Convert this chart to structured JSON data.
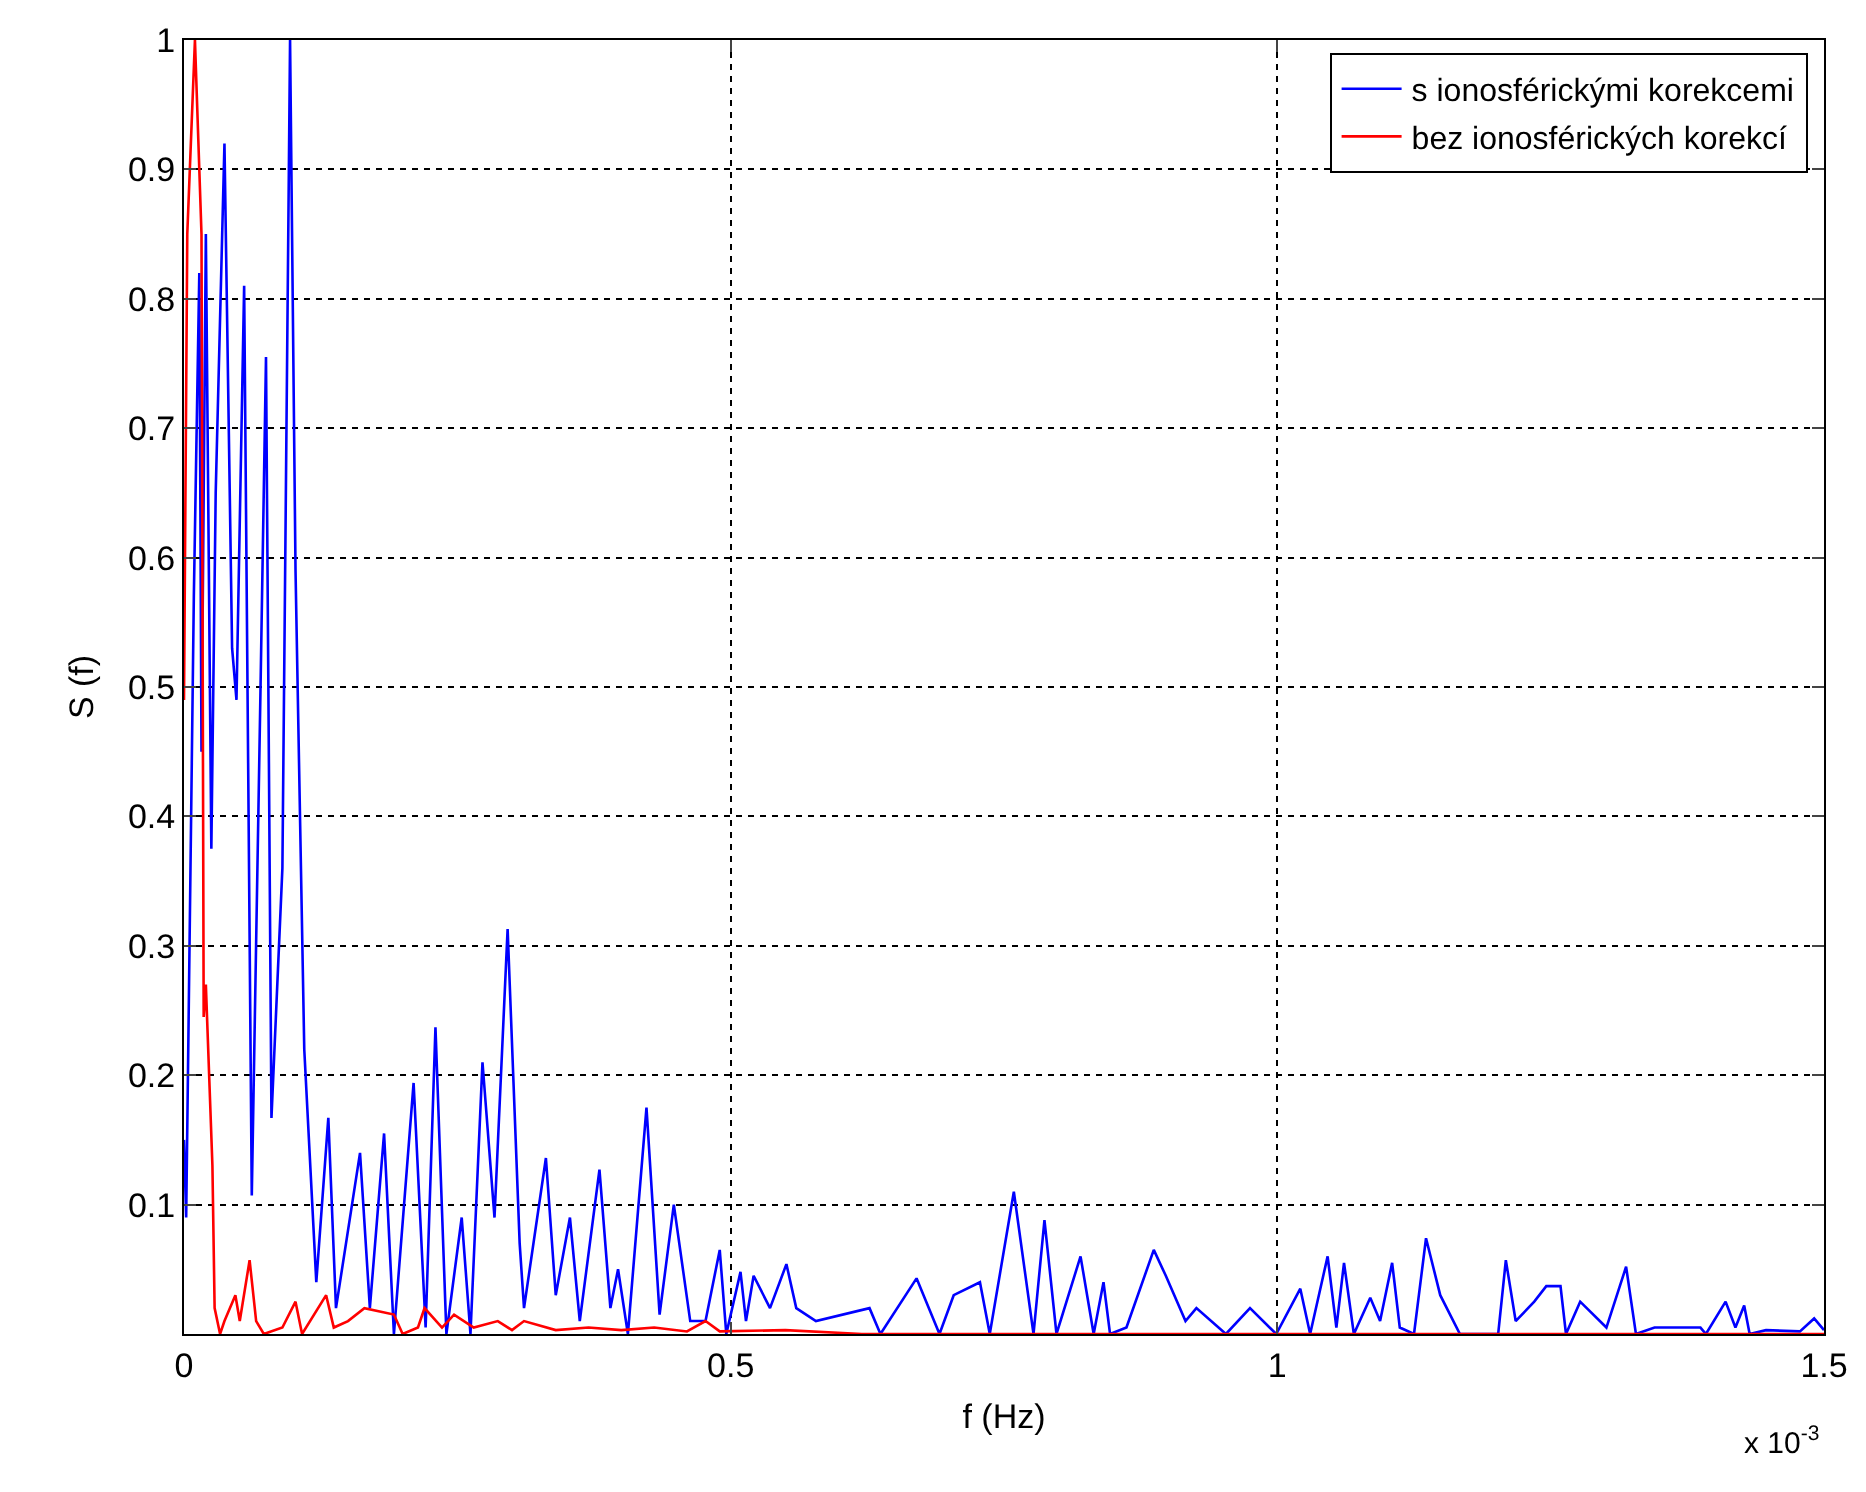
{
  "chart_data": {
    "type": "line",
    "xlabel": "f (Hz)",
    "ylabel": "S (f)",
    "xlim": [
      0,
      1.5
    ],
    "xticks": [
      0,
      0.5,
      1,
      1.5
    ],
    "ylim": [
      0,
      1
    ],
    "yticks": [
      0.1,
      0.2,
      0.3,
      0.4,
      0.5,
      0.6,
      0.7,
      0.8,
      0.9,
      1
    ],
    "grid": true,
    "legend": "top right",
    "marker": "none",
    "line_style": "solid",
    "annotations": [
      "x 10$^{-3}$"
    ],
    "series": [
      {
        "name": "s ionosférickými korekcemi",
        "color": "#0000ff",
        "x": [
          0,
          0.002,
          0.009,
          0.014,
          0.016,
          0.02,
          0.025,
          0.029,
          0.037,
          0.044,
          0.048,
          0.055,
          0.062,
          0.07,
          0.075,
          0.08,
          0.09,
          0.097,
          0.102,
          0.11,
          0.121,
          0.132,
          0.139,
          0.161,
          0.17,
          0.183,
          0.192,
          0.21,
          0.221,
          0.23,
          0.24,
          0.254,
          0.262,
          0.273,
          0.284,
          0.296,
          0.307,
          0.311,
          0.331,
          0.34,
          0.353,
          0.362,
          0.38,
          0.39,
          0.397,
          0.406,
          0.423,
          0.435,
          0.448,
          0.463,
          0.477,
          0.49,
          0.496,
          0.509,
          0.514,
          0.521,
          0.536,
          0.551,
          0.56,
          0.578,
          0.627,
          0.637,
          0.67,
          0.691,
          0.704,
          0.728,
          0.737,
          0.759,
          0.777,
          0.787,
          0.798,
          0.82,
          0.832,
          0.841,
          0.847,
          0.862,
          0.887,
          0.898,
          0.916,
          0.926,
          0.953,
          0.975,
          0.999,
          1.021,
          1.03,
          1.046,
          1.054,
          1.061,
          1.07,
          1.085,
          1.094,
          1.105,
          1.112,
          1.125,
          1.136,
          1.149,
          1.167,
          1.202,
          1.209,
          1.218,
          1.235,
          1.246,
          1.259,
          1.264,
          1.277,
          1.301,
          1.319,
          1.328,
          1.345,
          1.387,
          1.392,
          1.41,
          1.419,
          1.427,
          1.432,
          1.447,
          1.478,
          1.491,
          1.5
        ],
        "values": [
          0.15,
          0.09,
          0.57,
          0.82,
          0.45,
          0.85,
          0.375,
          0.65,
          0.92,
          0.53,
          0.49,
          0.81,
          0.107,
          0.5,
          0.755,
          0.167,
          0.36,
          1.0,
          0.59,
          0.22,
          0.04,
          0.167,
          0.02,
          0.14,
          0.02,
          0.155,
          0.0,
          0.194,
          0.005,
          0.237,
          0.0,
          0.09,
          0.0,
          0.21,
          0.09,
          0.313,
          0.07,
          0.02,
          0.136,
          0.03,
          0.09,
          0.01,
          0.127,
          0.02,
          0.05,
          0.0,
          0.175,
          0.015,
          0.1,
          0.01,
          0.01,
          0.065,
          0.0,
          0.048,
          0.01,
          0.045,
          0.02,
          0.054,
          0.02,
          0.01,
          0.02,
          0.0,
          0.043,
          0.0,
          0.03,
          0.04,
          0.0,
          0.11,
          0.0,
          0.088,
          0.0,
          0.06,
          0.0,
          0.04,
          0.0,
          0.005,
          0.065,
          0.045,
          0.01,
          0.02,
          0.0,
          0.02,
          0.0,
          0.035,
          0.0,
          0.06,
          0.005,
          0.055,
          0.0,
          0.028,
          0.01,
          0.055,
          0.005,
          0.0,
          0.074,
          0.03,
          0.0,
          0.0,
          0.057,
          0.01,
          0.025,
          0.037,
          0.037,
          0.0,
          0.025,
          0.005,
          0.052,
          0.0,
          0.005,
          0.005,
          0.0,
          0.025,
          0.005,
          0.022,
          0.0,
          0.003,
          0.002,
          0.012,
          0.003
        ]
      },
      {
        "name": "bez ionosférických korekcí",
        "color": "#ff0000",
        "x": [
          0,
          0.003,
          0.01,
          0.016,
          0.018,
          0.02,
          0.026,
          0.028,
          0.033,
          0.037,
          0.047,
          0.051,
          0.06,
          0.066,
          0.073,
          0.09,
          0.102,
          0.108,
          0.13,
          0.137,
          0.15,
          0.165,
          0.192,
          0.2,
          0.214,
          0.22,
          0.236,
          0.247,
          0.265,
          0.287,
          0.3,
          0.311,
          0.34,
          0.37,
          0.4,
          0.43,
          0.46,
          0.477,
          0.49,
          0.55,
          0.62,
          1.5
        ],
        "values": [
          0.49,
          0.85,
          1.0,
          0.85,
          0.245,
          0.27,
          0.13,
          0.02,
          0.0,
          0.01,
          0.03,
          0.01,
          0.057,
          0.01,
          0.0,
          0.005,
          0.025,
          0.0,
          0.03,
          0.005,
          0.01,
          0.02,
          0.015,
          0.0,
          0.005,
          0.02,
          0.005,
          0.015,
          0.005,
          0.01,
          0.003,
          0.01,
          0.003,
          0.005,
          0.003,
          0.005,
          0.002,
          0.01,
          0.002,
          0.003,
          0.0,
          0.0
        ]
      }
    ]
  }
}
